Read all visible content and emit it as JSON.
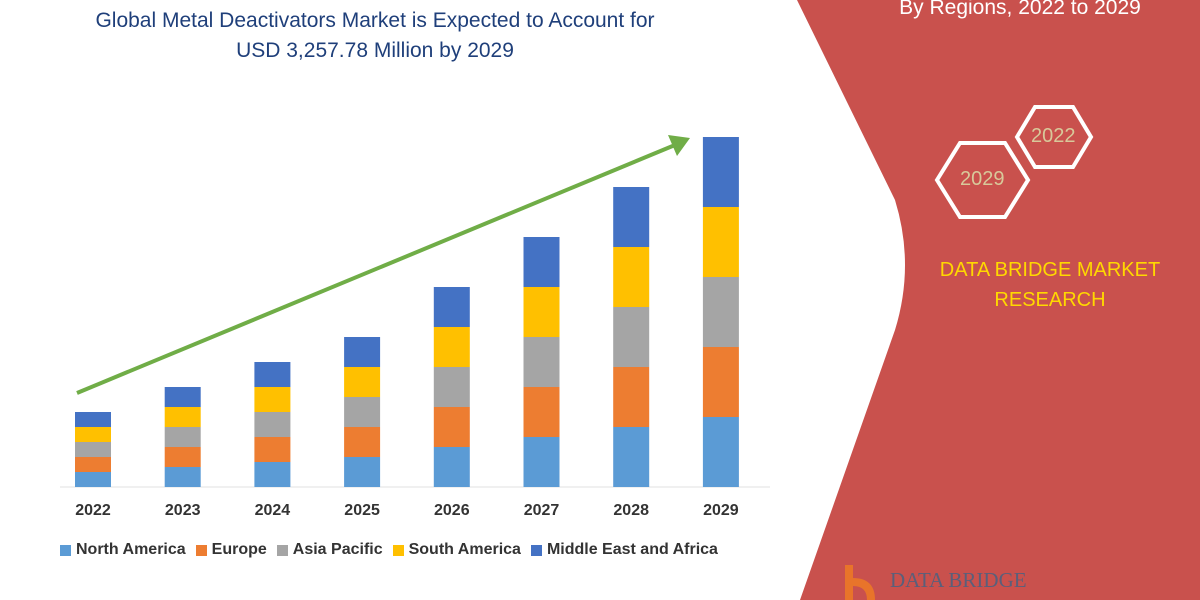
{
  "header": {
    "title_line1": "Global Metal Deactivators Market is Expected to Account for",
    "title_line2": "USD 3,257.78 Million by 2029",
    "right_title": "By Regions, 2022 to 2029"
  },
  "badges": {
    "hex_a": "2022",
    "hex_b": "2029"
  },
  "brand": {
    "name_line1": "DATA BRIDGE MARKET",
    "name_line2": "RESEARCH",
    "logo_text": "DATA BRIDGE"
  },
  "colors": {
    "panel": "#c9514d",
    "arrow": "#70ad47",
    "brand_text": "#ffd800"
  },
  "chart_data": {
    "type": "stacked-bar",
    "categories": [
      "2022",
      "2023",
      "2024",
      "2025",
      "2026",
      "2027",
      "2028",
      "2029"
    ],
    "y_axis_shown": false,
    "units": "relative (no axis printed)",
    "trend_arrow": true,
    "legend_position": "bottom",
    "series": [
      {
        "name": "North America",
        "color": "#5b9bd5",
        "values": [
          15,
          20,
          25,
          30,
          40,
          50,
          60,
          70
        ]
      },
      {
        "name": "Europe",
        "color": "#ed7d31",
        "values": [
          15,
          20,
          25,
          30,
          40,
          50,
          60,
          70
        ]
      },
      {
        "name": "Asia Pacific",
        "color": "#a5a5a5",
        "values": [
          15,
          20,
          25,
          30,
          40,
          50,
          60,
          70
        ]
      },
      {
        "name": "South America",
        "color": "#ffc000",
        "values": [
          15,
          20,
          25,
          30,
          40,
          50,
          60,
          70
        ]
      },
      {
        "name": "Middle East and Africa",
        "color": "#4472c4",
        "values": [
          15,
          20,
          25,
          30,
          40,
          50,
          60,
          70
        ]
      }
    ]
  }
}
